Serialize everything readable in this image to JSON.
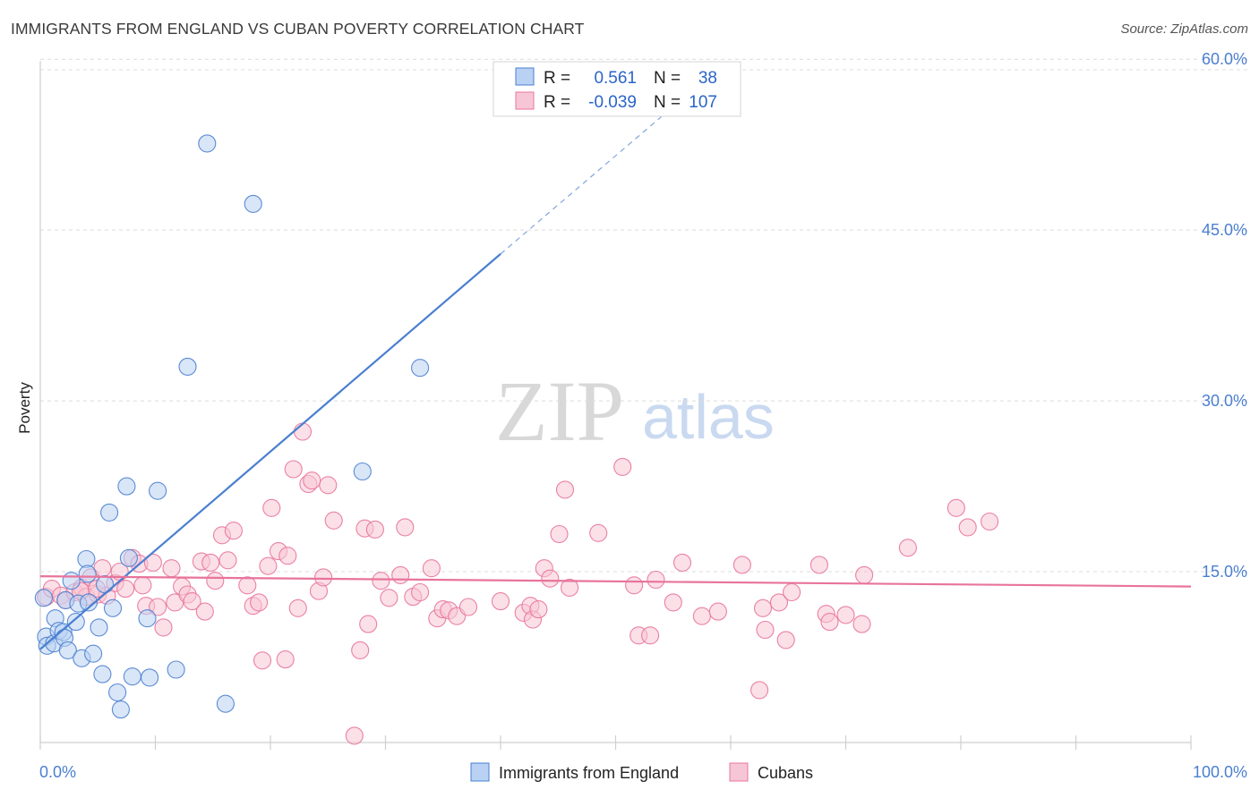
{
  "header": {
    "title": "IMMIGRANTS FROM ENGLAND VS CUBAN POVERTY CORRELATION CHART",
    "source": "Source: ZipAtlas.com"
  },
  "watermark": {
    "zip": "ZIP",
    "atlas": "atlas"
  },
  "colors": {
    "england": "#4a7fd0",
    "england_fill": "#b9d1f3",
    "cubans": "#e8749b",
    "cubans_fill": "#f7c6d6",
    "grid": "#dcdcdc",
    "tick_text": "#4a7fd0"
  },
  "stats_legend": {
    "england": {
      "r_label": "R =",
      "r_value": "0.561",
      "n_label": "N =",
      "n_value": "38"
    },
    "cubans": {
      "r_label": "R =",
      "r_value": "-0.039",
      "n_label": "N =",
      "n_value": "107"
    }
  },
  "chart_data": {
    "type": "scatter",
    "title": "IMMIGRANTS FROM ENGLAND VS CUBAN POVERTY CORRELATION CHART",
    "xlabel": "",
    "ylabel": "Poverty",
    "xlim": [
      0,
      100
    ],
    "ylim": [
      0,
      62
    ],
    "x_tick_labels": [
      "0.0%",
      "100.0%"
    ],
    "y_ticks": [
      15,
      30,
      45,
      60
    ],
    "y_tick_labels": [
      "15.0%",
      "30.0%",
      "45.0%",
      "60.0%"
    ],
    "legend": [
      "Immigrants from England",
      "Cubans"
    ],
    "series": [
      {
        "name": "Immigrants from England",
        "points": [
          [
            0.3,
            12.7
          ],
          [
            0.5,
            9.3
          ],
          [
            0.6,
            8.5
          ],
          [
            1.2,
            8.7
          ],
          [
            1.3,
            10.9
          ],
          [
            1.6,
            9.8
          ],
          [
            2.0,
            9.7
          ],
          [
            2.1,
            9.2
          ],
          [
            2.2,
            12.5
          ],
          [
            2.4,
            8.1
          ],
          [
            2.7,
            14.2
          ],
          [
            3.1,
            10.6
          ],
          [
            3.3,
            12.2
          ],
          [
            3.6,
            7.4
          ],
          [
            4.0,
            16.1
          ],
          [
            4.1,
            14.8
          ],
          [
            4.2,
            12.3
          ],
          [
            4.6,
            7.8
          ],
          [
            5.1,
            10.1
          ],
          [
            5.4,
            6.0
          ],
          [
            5.6,
            13.9
          ],
          [
            6.0,
            20.2
          ],
          [
            6.3,
            11.8
          ],
          [
            6.7,
            4.4
          ],
          [
            7.0,
            2.9
          ],
          [
            7.5,
            22.5
          ],
          [
            7.7,
            16.2
          ],
          [
            8.0,
            5.8
          ],
          [
            9.3,
            10.9
          ],
          [
            9.5,
            5.7
          ],
          [
            10.2,
            22.1
          ],
          [
            11.8,
            6.4
          ],
          [
            12.8,
            33.0
          ],
          [
            14.5,
            52.6
          ],
          [
            16.1,
            3.4
          ],
          [
            18.5,
            47.3
          ],
          [
            28.0,
            23.8
          ],
          [
            33.0,
            32.9
          ]
        ]
      },
      {
        "name": "Cubans",
        "points": [
          [
            0.5,
            12.8
          ],
          [
            1.0,
            13.5
          ],
          [
            1.8,
            12.9
          ],
          [
            2.2,
            12.5
          ],
          [
            3.0,
            13.2
          ],
          [
            3.6,
            13.6
          ],
          [
            4.0,
            12.8
          ],
          [
            4.4,
            14.5
          ],
          [
            5.0,
            13.0
          ],
          [
            5.4,
            15.3
          ],
          [
            5.8,
            12.9
          ],
          [
            6.5,
            14.0
          ],
          [
            6.9,
            15.0
          ],
          [
            7.4,
            13.5
          ],
          [
            8.0,
            16.2
          ],
          [
            8.6,
            15.7
          ],
          [
            8.9,
            13.8
          ],
          [
            9.2,
            12.0
          ],
          [
            9.8,
            15.8
          ],
          [
            10.2,
            11.9
          ],
          [
            10.7,
            10.1
          ],
          [
            11.4,
            15.3
          ],
          [
            11.7,
            12.3
          ],
          [
            12.3,
            13.7
          ],
          [
            12.8,
            13.0
          ],
          [
            13.2,
            12.4
          ],
          [
            14.0,
            15.9
          ],
          [
            14.3,
            11.5
          ],
          [
            14.8,
            15.8
          ],
          [
            15.2,
            14.2
          ],
          [
            15.8,
            18.2
          ],
          [
            16.3,
            16.0
          ],
          [
            16.8,
            18.6
          ],
          [
            18.0,
            13.8
          ],
          [
            18.5,
            12.0
          ],
          [
            19.0,
            12.3
          ],
          [
            19.3,
            7.2
          ],
          [
            19.8,
            15.5
          ],
          [
            20.1,
            20.6
          ],
          [
            20.7,
            16.8
          ],
          [
            21.3,
            7.3
          ],
          [
            21.5,
            16.4
          ],
          [
            22.0,
            24.0
          ],
          [
            22.4,
            11.8
          ],
          [
            22.8,
            27.3
          ],
          [
            23.3,
            22.7
          ],
          [
            23.6,
            23.0
          ],
          [
            24.2,
            13.3
          ],
          [
            24.6,
            14.5
          ],
          [
            25.0,
            22.6
          ],
          [
            25.5,
            19.5
          ],
          [
            27.3,
            0.6
          ],
          [
            27.8,
            8.1
          ],
          [
            28.2,
            18.8
          ],
          [
            28.5,
            10.4
          ],
          [
            29.1,
            18.7
          ],
          [
            29.6,
            14.2
          ],
          [
            30.3,
            12.7
          ],
          [
            31.3,
            14.7
          ],
          [
            31.7,
            18.9
          ],
          [
            32.4,
            12.8
          ],
          [
            33.0,
            13.2
          ],
          [
            34.0,
            15.3
          ],
          [
            34.5,
            10.9
          ],
          [
            35.0,
            11.7
          ],
          [
            35.5,
            11.6
          ],
          [
            36.2,
            11.1
          ],
          [
            37.2,
            11.9
          ],
          [
            40.0,
            12.4
          ],
          [
            42.0,
            11.4
          ],
          [
            42.6,
            12.0
          ],
          [
            42.8,
            10.8
          ],
          [
            43.3,
            11.7
          ],
          [
            43.8,
            15.3
          ],
          [
            44.3,
            14.4
          ],
          [
            45.1,
            18.3
          ],
          [
            45.6,
            22.2
          ],
          [
            46.0,
            13.6
          ],
          [
            48.5,
            18.4
          ],
          [
            50.6,
            24.2
          ],
          [
            51.6,
            13.8
          ],
          [
            52.0,
            9.4
          ],
          [
            53.0,
            9.4
          ],
          [
            53.5,
            14.3
          ],
          [
            55.0,
            12.3
          ],
          [
            55.8,
            15.8
          ],
          [
            57.5,
            11.1
          ],
          [
            58.9,
            11.5
          ],
          [
            61.0,
            15.6
          ],
          [
            62.5,
            4.6
          ],
          [
            62.8,
            11.8
          ],
          [
            63.0,
            9.9
          ],
          [
            64.2,
            12.3
          ],
          [
            64.8,
            9.0
          ],
          [
            65.3,
            13.2
          ],
          [
            67.7,
            15.6
          ],
          [
            68.3,
            11.3
          ],
          [
            68.6,
            10.6
          ],
          [
            70.0,
            11.2
          ],
          [
            71.4,
            10.4
          ],
          [
            71.6,
            14.7
          ],
          [
            75.4,
            17.1
          ],
          [
            79.6,
            20.6
          ],
          [
            80.6,
            18.9
          ],
          [
            82.5,
            19.4
          ],
          [
            3.5,
            13.3
          ],
          [
            4.9,
            13.5
          ]
        ]
      }
    ],
    "trend_lines": [
      {
        "series": "Immigrants from England",
        "x_start": 0.0,
        "y_start": 8.2,
        "x_solid_end": 40.0,
        "y_solid_end": 42.9,
        "x_dash_end": 56.0,
        "y_dash_end": 56.7
      },
      {
        "series": "Cubans",
        "x_start": 0.0,
        "y_start": 14.6,
        "x_end": 100.0,
        "y_end": 13.7
      }
    ]
  }
}
